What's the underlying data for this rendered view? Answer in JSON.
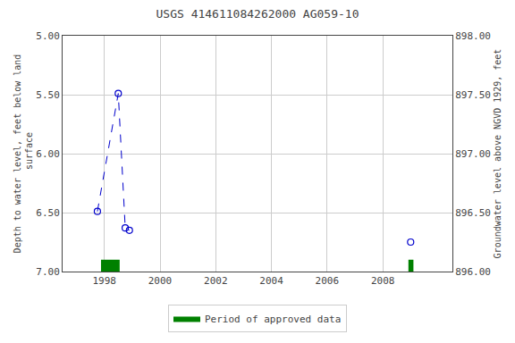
{
  "chart_data": {
    "type": "scatter",
    "title": "USGS 414611084262000 AG059-10",
    "ylabel": "Depth to water level, feet below land\n surface",
    "y2label": "Groundwater level above NGVD 1929, feet",
    "xlim": [
      1996.5,
      2010.5
    ],
    "xticks": [
      1998,
      2000,
      2002,
      2004,
      2006,
      2008
    ],
    "ylim": [
      7.0,
      5.0
    ],
    "yticks": [
      {
        "value": 5.0,
        "label": "5.00"
      },
      {
        "value": 5.5,
        "label": "5.50"
      },
      {
        "value": 6.0,
        "label": "6.00"
      },
      {
        "value": 6.5,
        "label": "6.50"
      },
      {
        "value": 7.0,
        "label": "7.00"
      }
    ],
    "y2lim": [
      896.0,
      898.0
    ],
    "y2ticks": [
      {
        "value": 896.0,
        "label": "896.00"
      },
      {
        "value": 896.5,
        "label": "896.50"
      },
      {
        "value": 897.0,
        "label": "897.00"
      },
      {
        "value": 897.5,
        "label": "897.50"
      },
      {
        "value": 898.0,
        "label": "898.00"
      }
    ],
    "grid": true,
    "legend": "bottom",
    "series": [
      {
        "type": "line",
        "line_style": "dashed",
        "color": "#0000cc",
        "x": [
          1997.75,
          1998.5,
          1998.75,
          1998.9
        ],
        "values": [
          6.49,
          5.49,
          6.63,
          6.65
        ]
      },
      {
        "type": "scatter",
        "marker": "circle-open",
        "color": "#0000cc",
        "x": [
          1997.75,
          1998.5,
          1998.75,
          1998.9,
          2009.0
        ],
        "values": [
          6.49,
          5.49,
          6.63,
          6.65,
          6.75
        ]
      },
      {
        "type": "band",
        "name": "Period of approved data",
        "color": "#008000",
        "ranges": [
          [
            1997.88,
            1998.55
          ],
          [
            2008.92,
            2009.1
          ]
        ],
        "height": 0.1
      }
    ]
  }
}
